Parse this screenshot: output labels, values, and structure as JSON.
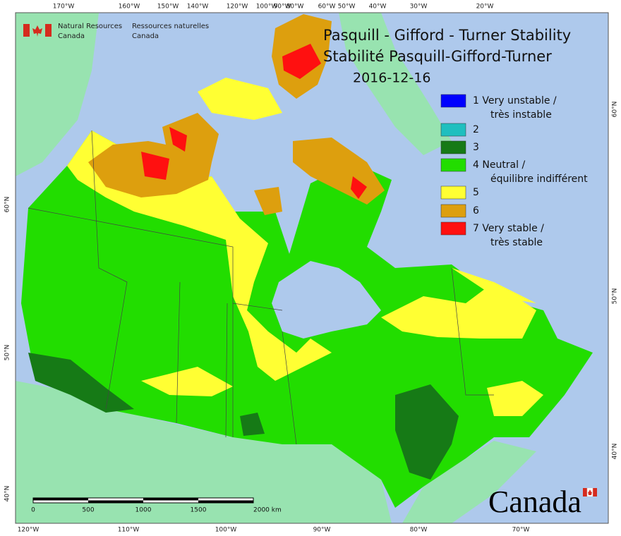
{
  "header": {
    "agency_en": [
      "Natural Resources",
      "Canada"
    ],
    "agency_fr": [
      "Ressources naturelles",
      "Canada"
    ]
  },
  "title": {
    "lines": [
      "Pasquill - Gifford - Turner Stability",
      "Stabilité Pasquill-Gifford-Turner",
      "2016-12-16"
    ]
  },
  "legend": {
    "items": [
      {
        "color": "#0000ff",
        "lines": [
          "1 Very unstable /",
          "très instable"
        ]
      },
      {
        "color": "#1fbfbf",
        "lines": [
          "2"
        ]
      },
      {
        "color": "#167a16",
        "lines": [
          "3"
        ]
      },
      {
        "color": "#22dd00",
        "lines": [
          "4 Neutral /",
          "équilibre indifférent"
        ]
      },
      {
        "color": "#ffff33",
        "lines": [
          "5"
        ]
      },
      {
        "color": "#dd9f0e",
        "lines": [
          "6"
        ]
      },
      {
        "color": "#ff1010",
        "lines": [
          "7 Very stable /",
          "très stable"
        ]
      }
    ]
  },
  "graticule": {
    "top": [
      "170°W",
      "160°W",
      "150°W",
      "140°W",
      "120°W",
      "100°W",
      "90°W",
      "80°W",
      "60°W",
      "50°W",
      "40°W",
      "30°W",
      "20°W"
    ],
    "bottom": [
      "120°W",
      "110°W",
      "100°W",
      "90°W",
      "80°W",
      "70°W"
    ],
    "left": [
      "60°N",
      "50°N",
      "40°N"
    ],
    "right": [
      "60°N",
      "50°N",
      "40°N"
    ]
  },
  "scale_bar": {
    "labels": [
      "0",
      "500",
      "1000",
      "1500",
      "2000 km"
    ]
  },
  "wordmark": "Canada"
}
